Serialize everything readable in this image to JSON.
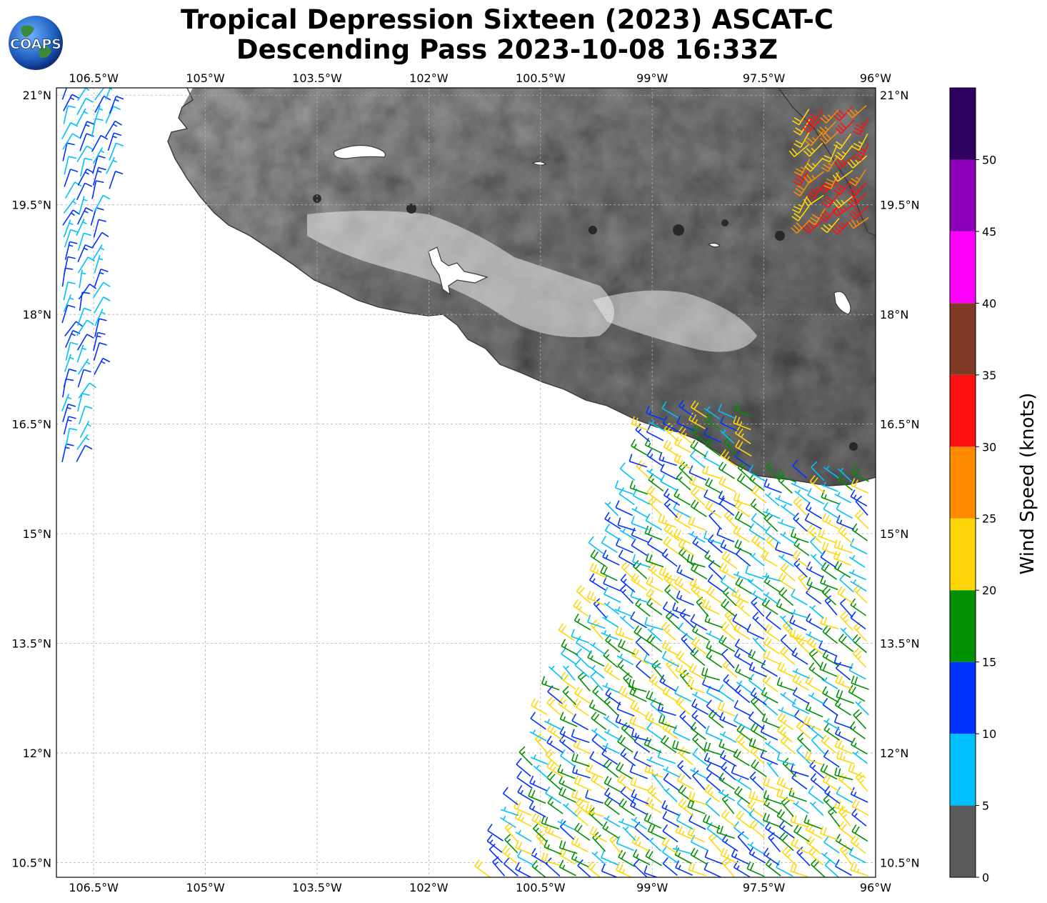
{
  "title_line1": "Tropical Depression Sixteen (2023) ASCAT-C",
  "title_line2": "Descending Pass 2023-10-08 16:33Z",
  "logo_text": "COAPS",
  "map": {
    "lon_range": [
      -107.0,
      -96.0
    ],
    "lat_range": [
      10.3,
      21.1
    ],
    "lon_ticks": [
      "106.5°W",
      "105°W",
      "103.5°W",
      "102°W",
      "100.5°W",
      "99°W",
      "97.5°W",
      "96°W"
    ],
    "lon_values": [
      -106.5,
      -105.0,
      -103.5,
      -102.0,
      -100.5,
      -99.0,
      -97.5,
      -96.0
    ],
    "lat_ticks": [
      "21°N",
      "19.5°N",
      "18°N",
      "16.5°N",
      "15°N",
      "13.5°N",
      "12°N",
      "10.5°N"
    ],
    "lat_values": [
      21.0,
      19.5,
      18.0,
      16.5,
      15.0,
      13.5,
      12.0,
      10.5
    ],
    "background": "grayscale terrain elevation over land, white ocean"
  },
  "colorbar": {
    "label": "Wind Speed (knots)",
    "ticks": [
      "0",
      "5",
      "10",
      "15",
      "20",
      "25",
      "30",
      "35",
      "40",
      "45",
      "50"
    ],
    "bins": [
      {
        "min": 0,
        "max": 5,
        "color": "#5a5a5a"
      },
      {
        "min": 5,
        "max": 10,
        "color": "#00bfff"
      },
      {
        "min": 10,
        "max": 15,
        "color": "#0033ff"
      },
      {
        "min": 15,
        "max": 20,
        "color": "#009000"
      },
      {
        "min": 20,
        "max": 25,
        "color": "#ffd60a"
      },
      {
        "min": 25,
        "max": 30,
        "color": "#ff8c00"
      },
      {
        "min": 30,
        "max": 35,
        "color": "#ff1010"
      },
      {
        "min": 35,
        "max": 40,
        "color": "#7f3b26"
      },
      {
        "min": 40,
        "max": 45,
        "color": "#ff00ff"
      },
      {
        "min": 45,
        "max": 50,
        "color": "#8c00b8"
      },
      {
        "min": 50,
        "max": 55,
        "color": "#2e0060"
      }
    ]
  },
  "wind_regions": [
    {
      "name": "west-swath",
      "lon": [
        -106.9,
        -106.2
      ],
      "lat": [
        16.0,
        21.0
      ],
      "speed_range": [
        5,
        15
      ],
      "u": 0.4,
      "v": 1.0
    },
    {
      "name": "northeast-corner",
      "lon": [
        -96.9,
        -96.0
      ],
      "lat": [
        19.3,
        21.0
      ],
      "speed_range": [
        20,
        35
      ],
      "u": -0.6,
      "v": -0.7
    },
    {
      "name": "main-swath",
      "lon": [
        -101.2,
        -96.0
      ],
      "lat": [
        10.3,
        16.6
      ],
      "speed_range": [
        5,
        25
      ],
      "u": -0.8,
      "v": 0.5
    }
  ]
}
